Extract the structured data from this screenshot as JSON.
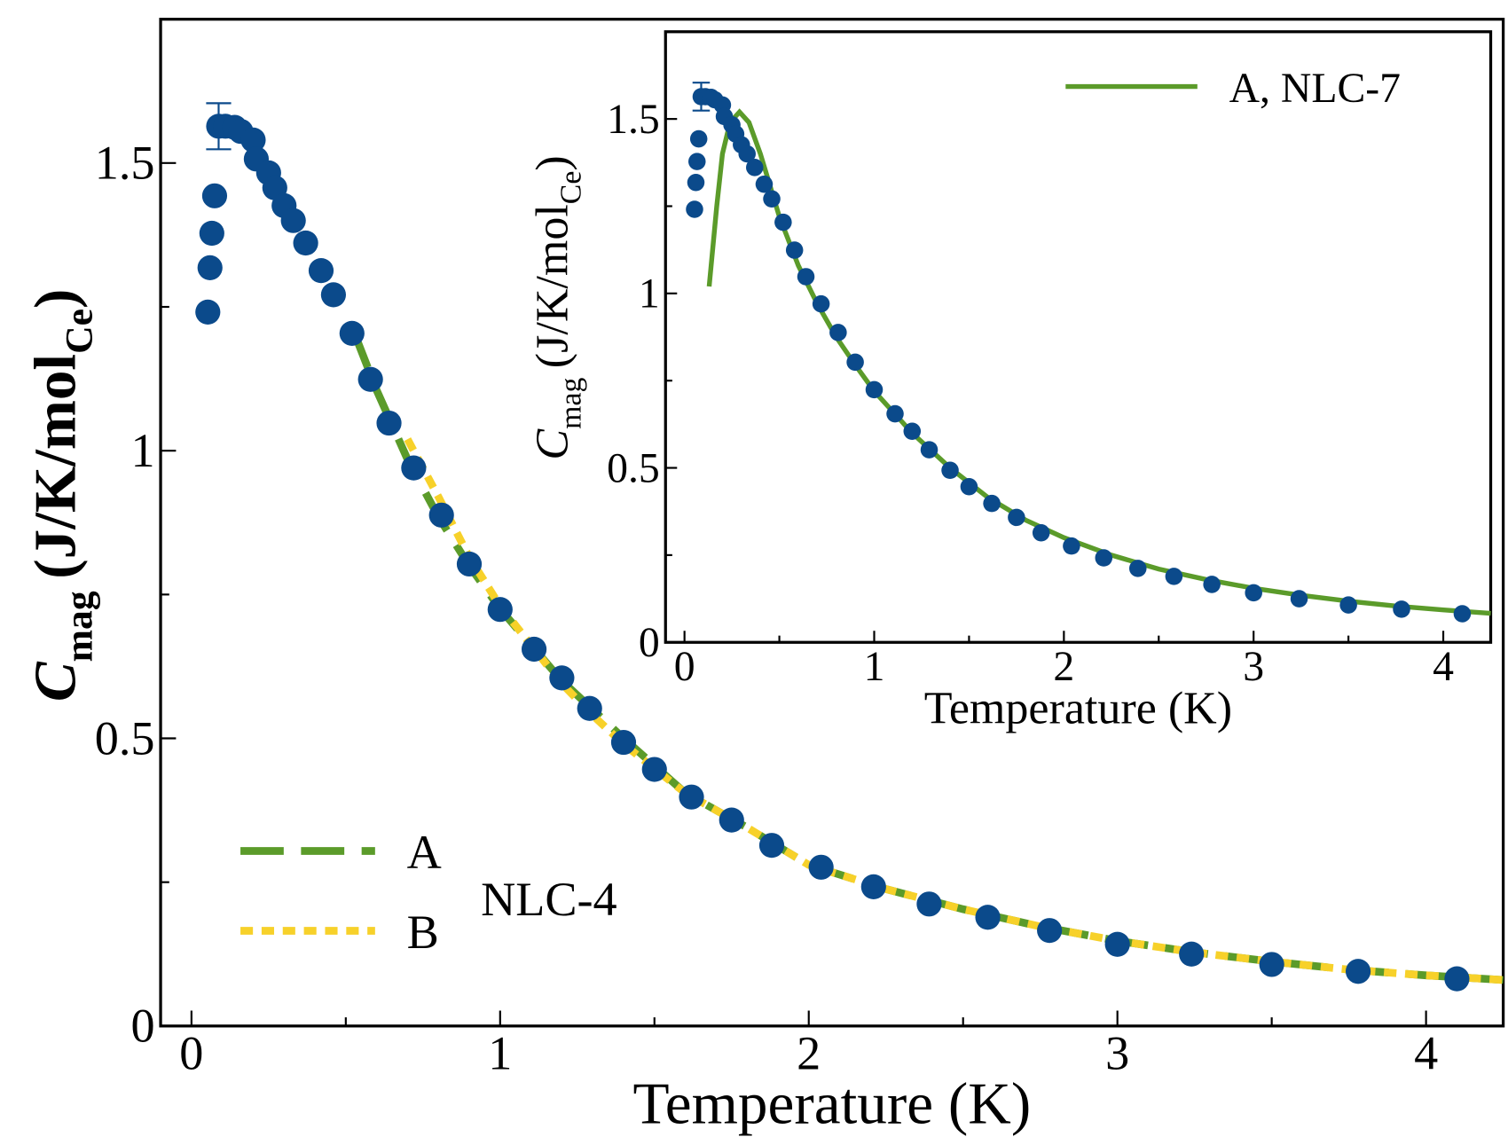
{
  "chart_data": [
    {
      "type": "scatter",
      "annotation": "NLC-4",
      "xlabel": "Temperature (K)",
      "ylabel": {
        "symbol": "C",
        "subscript": "mag",
        "unit": "(J/K/mol",
        "unit_subscript": "Ce",
        "close": ")"
      },
      "xlim": [
        -0.1,
        4.25
      ],
      "ylim": [
        0,
        1.75
      ],
      "xticks": [
        0,
        1,
        2,
        3,
        4
      ],
      "yticks": [
        0,
        0.5,
        1,
        1.5
      ],
      "xminorticks": [
        0.5,
        1.5,
        2.5,
        3.5
      ],
      "yminorticks": [
        0.25,
        0.75,
        1.25
      ],
      "legend": "lower left",
      "series": [
        {
          "style": "points",
          "color": "#0b4a8b",
          "x": [
            0.053,
            0.06,
            0.066,
            0.075,
            0.088,
            0.11,
            0.14,
            0.16,
            0.2,
            0.21,
            0.25,
            0.27,
            0.3,
            0.33,
            0.37,
            0.42,
            0.46,
            0.52,
            0.58,
            0.64,
            0.72,
            0.81,
            0.9,
            1.0,
            1.11,
            1.2,
            1.29,
            1.4,
            1.5,
            1.62,
            1.75,
            1.88,
            2.04,
            2.21,
            2.39,
            2.58,
            2.78,
            3.0,
            3.24,
            3.5,
            3.78,
            4.1
          ],
          "values": [
            1.241,
            1.318,
            1.378,
            1.443,
            1.564,
            1.564,
            1.562,
            1.555,
            1.54,
            1.507,
            1.483,
            1.457,
            1.426,
            1.4,
            1.361,
            1.313,
            1.271,
            1.204,
            1.124,
            1.048,
            0.97,
            0.888,
            0.803,
            0.724,
            0.655,
            0.605,
            0.552,
            0.493,
            0.446,
            0.398,
            0.358,
            0.314,
            0.276,
            0.242,
            0.212,
            0.189,
            0.166,
            0.142,
            0.125,
            0.107,
            0.095,
            0.082
          ],
          "errors": [
            null,
            null,
            null,
            null,
            0.04,
            null,
            null,
            null,
            null,
            null,
            null,
            null,
            null,
            null,
            null,
            null,
            null,
            null,
            null,
            null,
            null,
            null,
            null,
            null,
            null,
            null,
            null,
            null,
            null,
            null,
            null,
            null,
            null,
            null,
            null,
            null,
            null,
            null,
            null,
            null,
            null,
            null
          ]
        },
        {
          "name": "A",
          "style": "dashed",
          "color": "#5b9b2a",
          "x": [
            0.52,
            0.6,
            0.7,
            0.8,
            0.9,
            1.0,
            1.2,
            1.4,
            1.6,
            1.8,
            2.0,
            2.25,
            2.5,
            2.75,
            3.0,
            3.25,
            3.5,
            3.75,
            4.0,
            4.25
          ],
          "values": [
            1.215,
            1.105,
            0.985,
            0.885,
            0.8,
            0.725,
            0.6,
            0.5,
            0.405,
            0.345,
            0.28,
            0.238,
            0.203,
            0.173,
            0.148,
            0.128,
            0.112,
            0.098,
            0.088,
            0.08
          ]
        },
        {
          "name": "B",
          "style": "dotted",
          "color": "#f7d12a",
          "x": [
            0.7,
            0.8,
            0.9,
            1.0,
            1.2,
            1.3,
            1.4,
            1.6,
            1.8,
            2.0,
            2.25,
            2.5,
            2.75,
            3.0,
            3.25,
            3.5,
            3.75,
            4.0,
            4.25
          ],
          "values": [
            1.02,
            0.92,
            0.815,
            0.73,
            0.595,
            0.54,
            0.49,
            0.405,
            0.345,
            0.28,
            0.238,
            0.203,
            0.173,
            0.148,
            0.128,
            0.112,
            0.098,
            0.088,
            0.08
          ]
        }
      ]
    },
    {
      "type": "scatter",
      "xlabel": "Temperature (K)",
      "ylabel": {
        "symbol": "C",
        "subscript": "mag",
        "unit": "(J/K/mol",
        "unit_subscript": "Ce",
        "close": ")"
      },
      "xlim": [
        -0.1,
        4.25
      ],
      "ylim": [
        0,
        1.75
      ],
      "xticks": [
        0,
        1,
        2,
        3,
        4
      ],
      "yticks": [
        0,
        0.5,
        1,
        1.5
      ],
      "xminorticks": [
        0.5,
        1.5,
        2.5,
        3.5
      ],
      "yminorticks": [
        0.25,
        0.75,
        1.25
      ],
      "legend": "upper right",
      "series": [
        {
          "style": "points",
          "color": "#0b4a8b",
          "x": [
            0.053,
            0.06,
            0.066,
            0.075,
            0.088,
            0.11,
            0.14,
            0.16,
            0.2,
            0.21,
            0.25,
            0.27,
            0.3,
            0.33,
            0.37,
            0.42,
            0.46,
            0.52,
            0.58,
            0.64,
            0.72,
            0.81,
            0.9,
            1.0,
            1.11,
            1.2,
            1.29,
            1.4,
            1.5,
            1.62,
            1.75,
            1.88,
            2.04,
            2.21,
            2.39,
            2.58,
            2.78,
            3.0,
            3.24,
            3.5,
            3.78,
            4.1
          ],
          "values": [
            1.241,
            1.318,
            1.378,
            1.443,
            1.564,
            1.564,
            1.562,
            1.555,
            1.54,
            1.507,
            1.483,
            1.457,
            1.426,
            1.4,
            1.361,
            1.313,
            1.271,
            1.204,
            1.124,
            1.048,
            0.97,
            0.888,
            0.803,
            0.724,
            0.655,
            0.605,
            0.552,
            0.493,
            0.446,
            0.398,
            0.358,
            0.314,
            0.276,
            0.242,
            0.212,
            0.189,
            0.166,
            0.142,
            0.125,
            0.107,
            0.095,
            0.082
          ],
          "errors": [
            null,
            null,
            null,
            null,
            0.04,
            null,
            null,
            null,
            null,
            null,
            null,
            null,
            null,
            null,
            null,
            null,
            null,
            null,
            null,
            null,
            null,
            null,
            null,
            null,
            null,
            null,
            null,
            null,
            null,
            null,
            null,
            null,
            null,
            null,
            null,
            null,
            null,
            null,
            null,
            null,
            null,
            null
          ]
        },
        {
          "name": "A, NLC-7",
          "style": "solid",
          "color": "#5b9b2a",
          "x": [
            0.13,
            0.17,
            0.2,
            0.24,
            0.29,
            0.34,
            0.4,
            0.5,
            0.6,
            0.7,
            0.8,
            0.9,
            1.0,
            1.2,
            1.4,
            1.6,
            1.8,
            2.0,
            2.25,
            2.5,
            2.75,
            3.0,
            3.25,
            3.5,
            3.75,
            4.0,
            4.25
          ],
          "values": [
            1.02,
            1.25,
            1.4,
            1.49,
            1.52,
            1.49,
            1.4,
            1.22,
            1.08,
            0.97,
            0.875,
            0.795,
            0.72,
            0.6,
            0.5,
            0.415,
            0.35,
            0.3,
            0.25,
            0.21,
            0.18,
            0.155,
            0.135,
            0.118,
            0.104,
            0.093,
            0.083
          ]
        }
      ]
    }
  ]
}
